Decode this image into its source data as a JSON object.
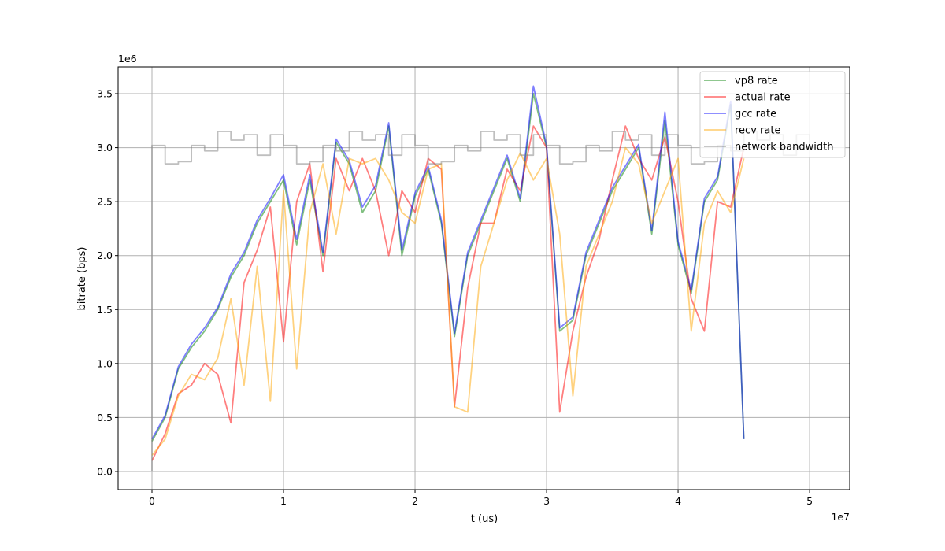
{
  "chart_data": {
    "type": "line",
    "xlabel": "t (us)",
    "ylabel": "bitrate (bps)",
    "x_offset_label": "1e7",
    "y_offset_label": "1e6",
    "xlim": [
      -2575000,
      53050000
    ],
    "ylim": [
      -168000,
      3748000
    ],
    "xticks": [
      {
        "value": 0,
        "label": "0"
      },
      {
        "value": 10000000,
        "label": "1"
      },
      {
        "value": 20000000,
        "label": "2"
      },
      {
        "value": 30000000,
        "label": "3"
      },
      {
        "value": 40000000,
        "label": "4"
      },
      {
        "value": 50000000,
        "label": "5"
      }
    ],
    "yticks": [
      {
        "value": 0,
        "label": "0.0"
      },
      {
        "value": 500000,
        "label": "0.5"
      },
      {
        "value": 1000000,
        "label": "1.0"
      },
      {
        "value": 1500000,
        "label": "1.5"
      },
      {
        "value": 2000000,
        "label": "2.0"
      },
      {
        "value": 2500000,
        "label": "2.5"
      },
      {
        "value": 3000000,
        "label": "3.0"
      },
      {
        "value": 3500000,
        "label": "3.5"
      }
    ],
    "grid": true,
    "legend": "upper right",
    "alpha": 0.5,
    "x": [
      0,
      1000000,
      2000000,
      3000000,
      4000000,
      5000000,
      6000000,
      7000000,
      8000000,
      9000000,
      10000000,
      11000000,
      12000000,
      13000000,
      14000000,
      15000000,
      16000000,
      17000000,
      18000000,
      19000000,
      20000000,
      21000000,
      22000000,
      23000000,
      24000000,
      25000000,
      26000000,
      27000000,
      28000000,
      29000000,
      30000000,
      31000000,
      32000000,
      33000000,
      34000000,
      35000000,
      36000000,
      37000000,
      38000000,
      39000000,
      40000000,
      41000000,
      42000000,
      43000000,
      44000000,
      45000000
    ],
    "series": [
      {
        "name": "vp8 rate",
        "color": "#008000",
        "values": [
          280000,
          500000,
          950000,
          1150000,
          1300000,
          1500000,
          1800000,
          2000000,
          2300000,
          2500000,
          2700000,
          2100000,
          2700000,
          2000000,
          3050000,
          2850000,
          2400000,
          2600000,
          3200000,
          2000000,
          2550000,
          2800000,
          2300000,
          1250000,
          2000000,
          2300000,
          2600000,
          2900000,
          2500000,
          3500000,
          3000000,
          1300000,
          1400000,
          2000000,
          2300000,
          2600000,
          2800000,
          3000000,
          2200000,
          3250000,
          2100000,
          1650000,
          2500000,
          2700000,
          3400000,
          300000
        ]
      },
      {
        "name": "actual rate",
        "color": "#ff0000",
        "values": [
          100000,
          350000,
          720000,
          800000,
          1000000,
          900000,
          450000,
          1750000,
          2050000,
          2450000,
          1200000,
          2500000,
          2850000,
          1850000,
          2900000,
          2600000,
          2900000,
          2600000,
          2000000,
          2600000,
          2400000,
          2900000,
          2800000,
          600000,
          1700000,
          2300000,
          2300000,
          2800000,
          2600000,
          3200000,
          3000000,
          550000,
          1300000,
          1800000,
          2150000,
          2700000,
          3200000,
          2900000,
          2700000,
          3100000,
          2500000,
          1600000,
          1300000,
          2500000,
          2450000,
          3000000
        ]
      },
      {
        "name": "gcc rate",
        "color": "#0000ff",
        "values": [
          300000,
          520000,
          970000,
          1180000,
          1330000,
          1520000,
          1830000,
          2030000,
          2330000,
          2530000,
          2750000,
          2150000,
          2750000,
          2030000,
          3080000,
          2880000,
          2450000,
          2650000,
          3230000,
          2050000,
          2580000,
          2830000,
          2330000,
          1280000,
          2030000,
          2330000,
          2630000,
          2930000,
          2530000,
          3570000,
          3020000,
          1330000,
          1430000,
          2030000,
          2330000,
          2630000,
          2830000,
          3030000,
          2230000,
          3330000,
          2130000,
          1680000,
          2530000,
          2730000,
          3430000,
          300000
        ]
      },
      {
        "name": "recv rate",
        "color": "#ffa500",
        "values": [
          150000,
          300000,
          700000,
          900000,
          850000,
          1050000,
          1600000,
          800000,
          1900000,
          650000,
          2600000,
          950000,
          2400000,
          2850000,
          2200000,
          2900000,
          2850000,
          2900000,
          2700000,
          2400000,
          2300000,
          2800000,
          2850000,
          600000,
          550000,
          1900000,
          2300000,
          2700000,
          2950000,
          2700000,
          2900000,
          2200000,
          700000,
          1900000,
          2200000,
          2500000,
          3000000,
          2850000,
          2300000,
          2600000,
          2900000,
          1300000,
          2300000,
          2600000,
          2400000,
          2900000
        ]
      },
      {
        "name": "network bandwidth",
        "color": "#808080",
        "drawstyle": "steps-post",
        "x": [
          0,
          0,
          1000000,
          2000000,
          3000000,
          4000000,
          5000000,
          6000000,
          7000000,
          8000000,
          9000000,
          10000000,
          11000000,
          12000000,
          13000000,
          14000000,
          15000000,
          16000000,
          17000000,
          18000000,
          19000000,
          20000000,
          21000000,
          22000000,
          23000000,
          24000000,
          25000000,
          26000000,
          27000000,
          28000000,
          29000000,
          30000000,
          31000000,
          32000000,
          33000000,
          34000000,
          35000000,
          36000000,
          37000000,
          38000000,
          39000000,
          40000000,
          41000000,
          42000000,
          43000000,
          44000000,
          45000000,
          46000000,
          47000000,
          48000000,
          49000000,
          50000000,
          51000000
        ],
        "values": [
          0,
          3020000,
          2850000,
          2870000,
          3020000,
          2970000,
          3150000,
          3070000,
          3120000,
          2930000,
          3120000,
          3020000,
          2850000,
          2870000,
          3020000,
          2970000,
          3150000,
          3070000,
          3120000,
          2930000,
          3120000,
          3020000,
          2850000,
          2870000,
          3020000,
          2970000,
          3150000,
          3070000,
          3120000,
          2930000,
          3120000,
          3020000,
          2850000,
          2870000,
          3020000,
          2970000,
          3150000,
          3070000,
          3120000,
          2930000,
          3120000,
          3020000,
          2850000,
          2870000,
          3020000,
          2970000,
          3150000,
          3070000,
          3120000,
          2930000,
          3120000,
          3020000,
          3020000
        ]
      }
    ]
  }
}
